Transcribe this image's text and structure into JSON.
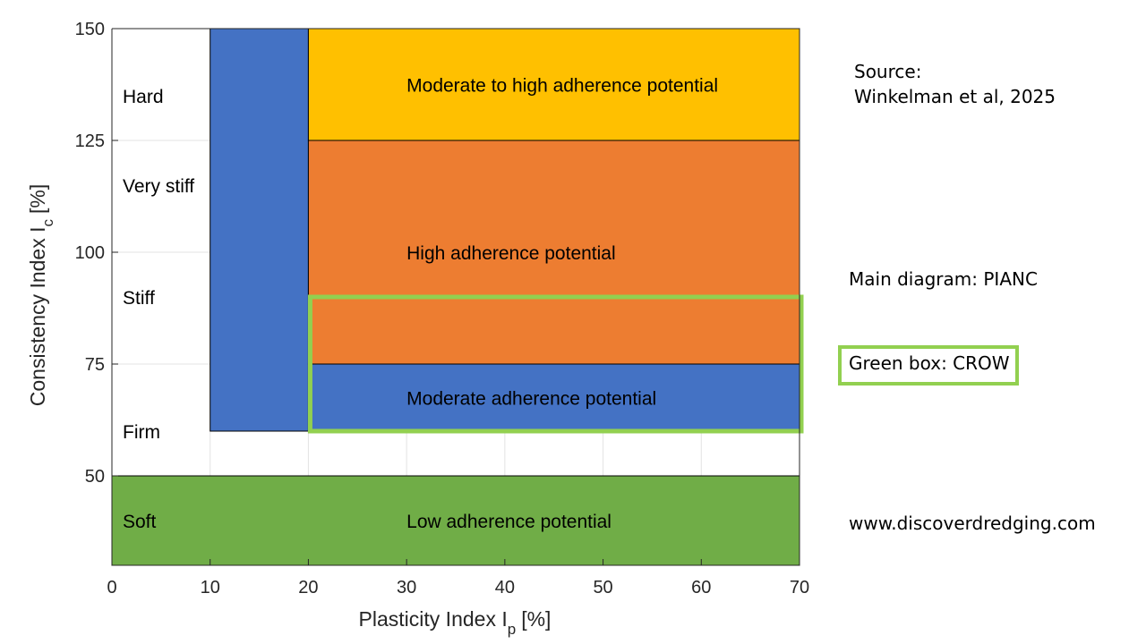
{
  "chart_data": {
    "type": "area",
    "xlabel": "Plasticity Index I",
    "xlabel_sub": "p",
    "xlabel_unit": "[%]",
    "ylabel": "Consistency Index I",
    "ylabel_sub": "c",
    "ylabel_unit": "[%]",
    "xlim": [
      0,
      70
    ],
    "ylim": [
      30,
      150
    ],
    "xticks": [
      0,
      10,
      20,
      30,
      40,
      50,
      60,
      70
    ],
    "yticks": [
      50,
      75,
      100,
      125,
      150
    ],
    "grid": true,
    "regions": [
      {
        "x": [
          0,
          70
        ],
        "y": [
          30,
          50
        ],
        "color": "#70AD47",
        "label": "Low adherence potential"
      },
      {
        "x": [
          10,
          20
        ],
        "y": [
          60,
          150
        ],
        "color": "#4472C4",
        "label": ""
      },
      {
        "x": [
          20,
          70
        ],
        "y": [
          125,
          150
        ],
        "color": "#FFC000",
        "label": "Moderate to high adherence potential"
      },
      {
        "x": [
          20,
          70
        ],
        "y": [
          75,
          125
        ],
        "color": "#ED7D31",
        "label": "High adherence potential"
      },
      {
        "x": [
          20,
          70
        ],
        "y": [
          60,
          75
        ],
        "color": "#4472C4",
        "label": "Moderate adherence potential"
      }
    ],
    "consistency_labels": [
      {
        "text": "Hard",
        "y": 135
      },
      {
        "text": "Very stiff",
        "y": 115
      },
      {
        "text": "Stiff",
        "y": 90
      },
      {
        "text": "Firm",
        "y": 60
      },
      {
        "text": "Soft",
        "y": 40
      }
    ],
    "highlight_box": {
      "x": [
        20,
        70
      ],
      "y": [
        60,
        90
      ],
      "color": "#92D050"
    }
  },
  "notes": {
    "source_label": "Source:",
    "source_text": "Winkelman et al, 2025",
    "main_diagram": "Main diagram: PIANC",
    "green_box": "Green box: CROW",
    "website": "www.discoverdredging.com"
  }
}
